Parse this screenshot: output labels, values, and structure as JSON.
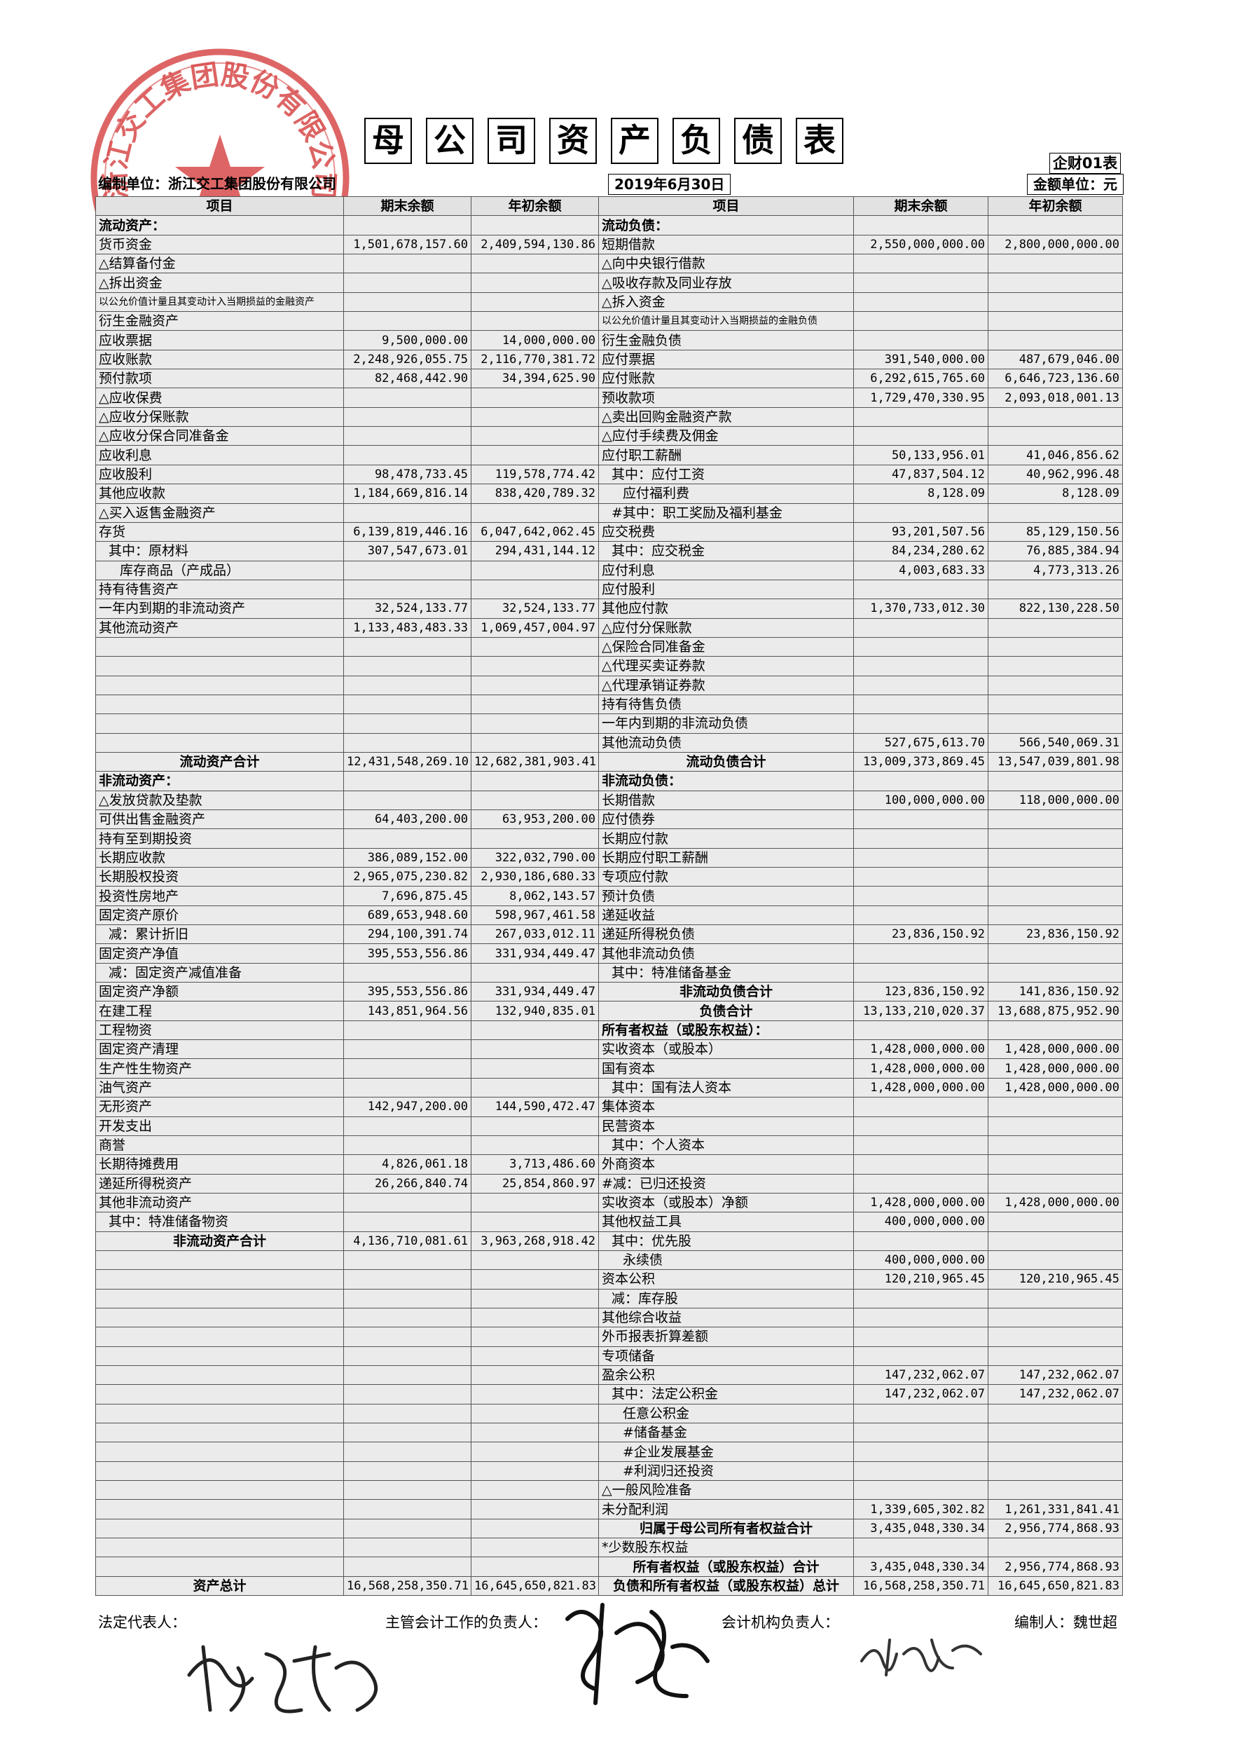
{
  "seal": {
    "text": "浙江交工集团股份有限公司"
  },
  "title_chars": [
    "母",
    "公",
    "司",
    "资",
    "产",
    "负",
    "债",
    "表"
  ],
  "form_no": "企财01表",
  "org": "编制单位：浙江交工集团股份有限公司",
  "date": "2019年6月30日",
  "unit": "金额单位：元",
  "headers": [
    "项目",
    "期末余额",
    "年初余额",
    "项目",
    "期末余额",
    "年初余额"
  ],
  "rows": [
    [
      "流动资产：",
      "",
      "",
      "流动负债：",
      "",
      ""
    ],
    [
      "货币资金",
      "1,501,678,157.60",
      "2,409,594,130.86",
      "短期借款",
      "2,550,000,000.00",
      "2,800,000,000.00"
    ],
    [
      "△结算备付金",
      "",
      "",
      "△向中央银行借款",
      "",
      ""
    ],
    [
      "△拆出资金",
      "",
      "",
      "△吸收存款及同业存放",
      "",
      ""
    ],
    [
      "以公允价值计量且其变动计入当期损益的金融资产",
      "",
      "",
      "△拆入资金",
      "",
      ""
    ],
    [
      "衍生金融资产",
      "",
      "",
      "以公允价值计量且其变动计入当期损益的金融负债",
      "",
      ""
    ],
    [
      "应收票据",
      "9,500,000.00",
      "14,000,000.00",
      "衍生金融负债",
      "",
      ""
    ],
    [
      "应收账款",
      "2,248,926,055.75",
      "2,116,770,381.72",
      "应付票据",
      "391,540,000.00",
      "487,679,046.00"
    ],
    [
      "预付款项",
      "82,468,442.90",
      "34,394,625.90",
      "应付账款",
      "6,292,615,765.60",
      "6,646,723,136.60"
    ],
    [
      "△应收保费",
      "",
      "",
      "预收款项",
      "1,729,470,330.95",
      "2,093,018,001.13"
    ],
    [
      "△应收分保账款",
      "",
      "",
      "△卖出回购金融资产款",
      "",
      ""
    ],
    [
      "△应收分保合同准备金",
      "",
      "",
      "△应付手续费及佣金",
      "",
      ""
    ],
    [
      "应收利息",
      "",
      "",
      "应付职工薪酬",
      "50,133,956.01",
      "41,046,856.62"
    ],
    [
      "应收股利",
      "98,478,733.45",
      "119,578,774.42",
      "其中：应付工资",
      "47,837,504.12",
      "40,962,996.48"
    ],
    [
      "其他应收款",
      "1,184,669,816.14",
      "838,420,789.32",
      "应付福利费",
      "8,128.09",
      "8,128.09"
    ],
    [
      "△买入返售金融资产",
      "",
      "",
      "#其中：职工奖励及福利基金",
      "",
      ""
    ],
    [
      "存货",
      "6,139,819,446.16",
      "6,047,642,062.45",
      "应交税费",
      "93,201,507.56",
      "85,129,150.56"
    ],
    [
      "其中：原材料",
      "307,547,673.01",
      "294,431,144.12",
      "其中：应交税金",
      "84,234,280.62",
      "76,885,384.94"
    ],
    [
      "库存商品（产成品）",
      "",
      "",
      "应付利息",
      "4,003,683.33",
      "4,773,313.26"
    ],
    [
      "持有待售资产",
      "",
      "",
      "应付股利",
      "",
      ""
    ],
    [
      "一年内到期的非流动资产",
      "32,524,133.77",
      "32,524,133.77",
      "其他应付款",
      "1,370,733,012.30",
      "822,130,228.50"
    ],
    [
      "其他流动资产",
      "1,133,483,483.33",
      "1,069,457,004.97",
      "△应付分保账款",
      "",
      ""
    ],
    [
      "",
      "",
      "",
      "△保险合同准备金",
      "",
      ""
    ],
    [
      "",
      "",
      "",
      "△代理买卖证券款",
      "",
      ""
    ],
    [
      "",
      "",
      "",
      "△代理承销证券款",
      "",
      ""
    ],
    [
      "",
      "",
      "",
      "持有待售负债",
      "",
      ""
    ],
    [
      "",
      "",
      "",
      "一年内到期的非流动负债",
      "",
      ""
    ],
    [
      "",
      "",
      "",
      "其他流动负债",
      "527,675,613.70",
      "566,540,069.31"
    ],
    [
      "流动资产合计",
      "12,431,548,269.10",
      "12,682,381,903.41",
      "流动负债合计",
      "13,009,373,869.45",
      "13,547,039,801.98"
    ],
    [
      "非流动资产：",
      "",
      "",
      "非流动负债：",
      "",
      ""
    ],
    [
      "△发放贷款及垫款",
      "",
      "",
      "长期借款",
      "100,000,000.00",
      "118,000,000.00"
    ],
    [
      "可供出售金融资产",
      "64,403,200.00",
      "63,953,200.00",
      "应付债券",
      "",
      ""
    ],
    [
      "持有至到期投资",
      "",
      "",
      "长期应付款",
      "",
      ""
    ],
    [
      "长期应收款",
      "386,089,152.00",
      "322,032,790.00",
      "长期应付职工薪酬",
      "",
      ""
    ],
    [
      "长期股权投资",
      "2,965,075,230.82",
      "2,930,186,680.33",
      "专项应付款",
      "",
      ""
    ],
    [
      "投资性房地产",
      "7,696,875.45",
      "8,062,143.57",
      "预计负债",
      "",
      ""
    ],
    [
      "固定资产原价",
      "689,653,948.60",
      "598,967,461.58",
      "递延收益",
      "",
      ""
    ],
    [
      "减：累计折旧",
      "294,100,391.74",
      "267,033,012.11",
      "递延所得税负债",
      "23,836,150.92",
      "23,836,150.92"
    ],
    [
      "固定资产净值",
      "395,553,556.86",
      "331,934,449.47",
      "其他非流动负债",
      "",
      ""
    ],
    [
      "减：固定资产减值准备",
      "",
      "",
      "其中：特准储备基金",
      "",
      ""
    ],
    [
      "固定资产净额",
      "395,553,556.86",
      "331,934,449.47",
      "非流动负债合计",
      "123,836,150.92",
      "141,836,150.92"
    ],
    [
      "在建工程",
      "143,851,964.56",
      "132,940,835.01",
      "负债合计",
      "13,133,210,020.37",
      "13,688,875,952.90"
    ],
    [
      "工程物资",
      "",
      "",
      "所有者权益（或股东权益）：",
      "",
      ""
    ],
    [
      "固定资产清理",
      "",
      "",
      "实收资本（或股本）",
      "1,428,000,000.00",
      "1,428,000,000.00"
    ],
    [
      "生产性生物资产",
      "",
      "",
      "国有资本",
      "1,428,000,000.00",
      "1,428,000,000.00"
    ],
    [
      "油气资产",
      "",
      "",
      "其中：国有法人资本",
      "1,428,000,000.00",
      "1,428,000,000.00"
    ],
    [
      "无形资产",
      "142,947,200.00",
      "144,590,472.47",
      "集体资本",
      "",
      ""
    ],
    [
      "开发支出",
      "",
      "",
      "民营资本",
      "",
      ""
    ],
    [
      "商誉",
      "",
      "",
      "其中：个人资本",
      "",
      ""
    ],
    [
      "长期待摊费用",
      "4,826,061.18",
      "3,713,486.60",
      "外商资本",
      "",
      ""
    ],
    [
      "递延所得税资产",
      "26,266,840.74",
      "25,854,860.97",
      "#减：已归还投资",
      "",
      ""
    ],
    [
      "其他非流动资产",
      "",
      "",
      "实收资本（或股本）净额",
      "1,428,000,000.00",
      "1,428,000,000.00"
    ],
    [
      "其中：特准储备物资",
      "",
      "",
      "其他权益工具",
      "400,000,000.00",
      ""
    ],
    [
      "非流动资产合计",
      "4,136,710,081.61",
      "3,963,268,918.42",
      "其中：优先股",
      "",
      ""
    ],
    [
      "",
      "",
      "",
      "永续债",
      "400,000,000.00",
      ""
    ],
    [
      "",
      "",
      "",
      "资本公积",
      "120,210,965.45",
      "120,210,965.45"
    ],
    [
      "",
      "",
      "",
      "减：库存股",
      "",
      ""
    ],
    [
      "",
      "",
      "",
      "其他综合收益",
      "",
      ""
    ],
    [
      "",
      "",
      "",
      "外币报表折算差额",
      "",
      ""
    ],
    [
      "",
      "",
      "",
      "专项储备",
      "",
      ""
    ],
    [
      "",
      "",
      "",
      "盈余公积",
      "147,232,062.07",
      "147,232,062.07"
    ],
    [
      "",
      "",
      "",
      "其中：法定公积金",
      "147,232,062.07",
      "147,232,062.07"
    ],
    [
      "",
      "",
      "",
      "任意公积金",
      "",
      ""
    ],
    [
      "",
      "",
      "",
      "#储备基金",
      "",
      ""
    ],
    [
      "",
      "",
      "",
      "#企业发展基金",
      "",
      ""
    ],
    [
      "",
      "",
      "",
      "#利润归还投资",
      "",
      ""
    ],
    [
      "",
      "",
      "",
      "△一般风险准备",
      "",
      ""
    ],
    [
      "",
      "",
      "",
      "未分配利润",
      "1,339,605,302.82",
      "1,261,331,841.41"
    ],
    [
      "",
      "",
      "",
      "归属于母公司所有者权益合计",
      "3,435,048,330.34",
      "2,956,774,868.93"
    ],
    [
      "",
      "",
      "",
      "*少数股东权益",
      "",
      ""
    ],
    [
      "",
      "",
      "",
      "所有者权益（或股东权益）合计",
      "3,435,048,330.34",
      "2,956,774,868.93"
    ],
    [
      "资产总计",
      "16,568,258,350.71",
      "16,645,650,821.83",
      "负债和所有者权益（或股东权益）总计",
      "16,568,258,350.71",
      "16,645,650,821.83"
    ]
  ],
  "footer": {
    "legal_rep": "法定代表人：",
    "acct_head": "主管会计工作的负责人：",
    "dept_head": "会计机构负责人：",
    "preparer": "编制人：魏世超"
  }
}
